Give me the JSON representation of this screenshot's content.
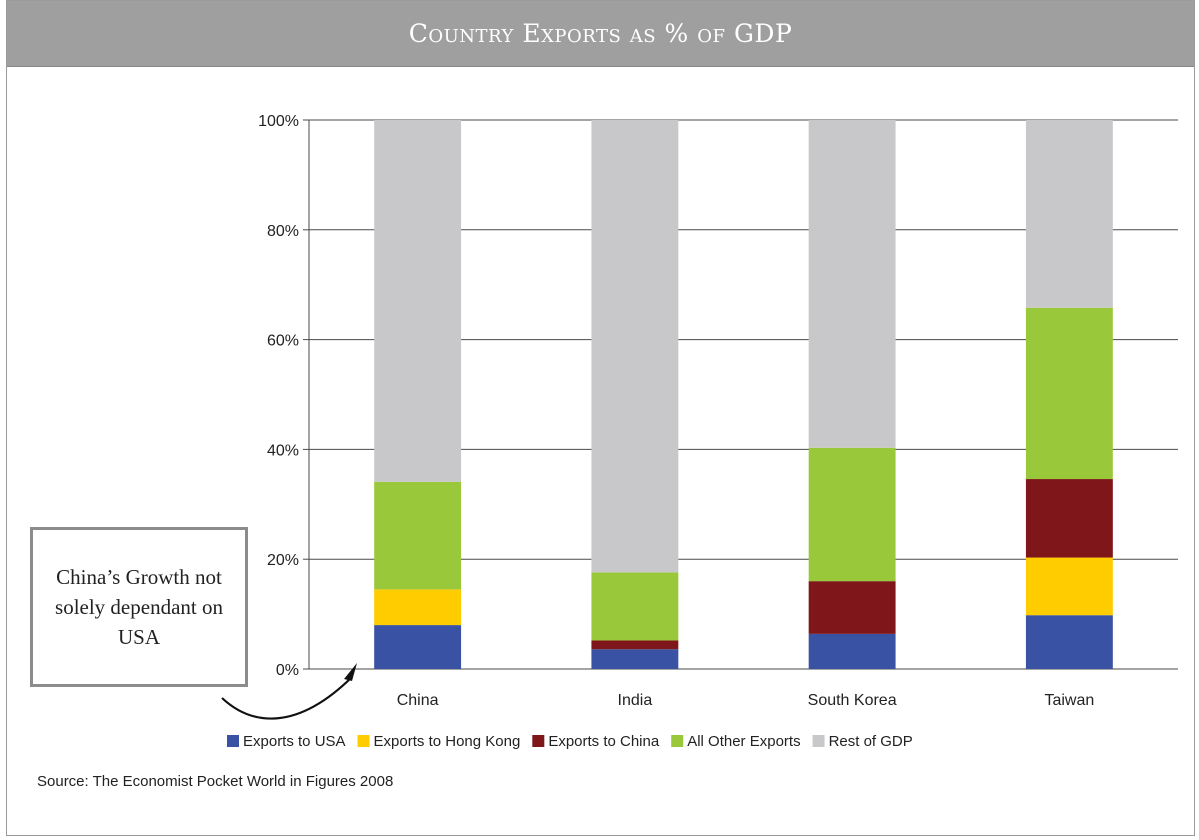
{
  "chart_data": {
    "type": "bar",
    "stacked": true,
    "title": "Country Exports as % of GDP",
    "categories": [
      "China",
      "India",
      "South Korea",
      "Taiwan"
    ],
    "ylim": [
      0,
      100
    ],
    "yticks": [
      "0%",
      "20%",
      "40%",
      "60%",
      "80%",
      "100%"
    ],
    "ytick_values": [
      0,
      20,
      40,
      60,
      80,
      100
    ],
    "grid": true,
    "legend_position": "bottom",
    "series": [
      {
        "name": "Exports to USA",
        "color": "#3a52a3",
        "values": [
          8,
          3.6,
          6.4,
          9.8
        ]
      },
      {
        "name": "Exports to Hong Kong",
        "color": "#ffcc00",
        "values": [
          6.5,
          0,
          0,
          10.5
        ]
      },
      {
        "name": "Exports to China",
        "color": "#7f1619",
        "values": [
          0,
          1.6,
          9.6,
          14.3
        ]
      },
      {
        "name": "All Other Exports",
        "color": "#99c93b",
        "values": [
          19.6,
          12.4,
          24.3,
          31.2
        ]
      },
      {
        "name": "Rest of GDP",
        "color": "#c8c8ca",
        "values": [
          65.9,
          82.4,
          59.7,
          34.2
        ]
      }
    ]
  },
  "annotation": {
    "text": "China’s Growth not solely dependant on USA",
    "target_category": "China"
  },
  "source": "Source: The Economist Pocket World in Figures 2008"
}
